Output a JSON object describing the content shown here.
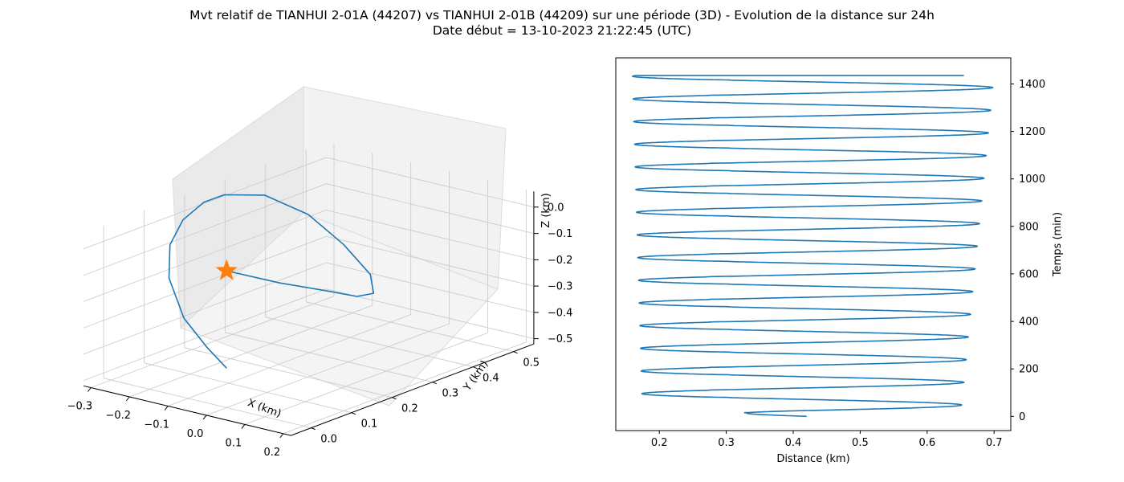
{
  "figure": {
    "title_line1": "Mvt relatif de TIANHUI 2-01A (44207) vs TIANHUI 2-01B (44209) sur une période (3D) - Evolution de la distance sur 24h",
    "title_line2": "Date début = 13-10-2023 21:22:45 (UTC)"
  },
  "colors": {
    "line": "#1f77b4",
    "marker": "#ff7f0e",
    "pane": "#f2f2f2",
    "grid": "#c8c8c8"
  },
  "chart_data": [
    {
      "type": "line3d",
      "xlabel": "X (km)",
      "ylabel": "Y (km)",
      "zlabel": "Z (km)",
      "xticks": [
        "−0.3",
        "−0.2",
        "−0.1",
        "0.0",
        "0.1",
        "0.2"
      ],
      "yticks": [
        "0.0",
        "0.1",
        "0.2",
        "0.3",
        "0.4",
        "0.5"
      ],
      "zticks": [
        "0.0",
        "−0.1",
        "−0.2",
        "−0.3",
        "−0.4",
        "−0.5"
      ],
      "xlim": [
        -0.32,
        0.22
      ],
      "ylim": [
        -0.05,
        0.55
      ],
      "zlim": [
        -0.52,
        0.06
      ],
      "grid": true,
      "marker": {
        "shape": "star",
        "x": 0.0,
        "y": 0.0,
        "z": 0.0
      },
      "series": [
        {
          "points": [
            [
              0.0,
              0.0,
              0.0
            ],
            [
              -0.02,
              0.15,
              -0.14
            ],
            [
              -0.03,
              0.28,
              -0.25
            ],
            [
              -0.04,
              0.36,
              -0.32
            ],
            [
              -0.06,
              0.42,
              -0.35
            ],
            [
              -0.1,
              0.45,
              -0.31
            ],
            [
              -0.17,
              0.45,
              -0.22
            ],
            [
              -0.23,
              0.42,
              -0.11
            ],
            [
              -0.27,
              0.35,
              -0.01
            ],
            [
              -0.28,
              0.26,
              0.04
            ],
            [
              -0.27,
              0.2,
              0.05
            ],
            [
              -0.24,
              0.12,
              0.04
            ],
            [
              -0.2,
              0.05,
              0.0
            ],
            [
              -0.15,
              0.0,
              -0.08
            ],
            [
              -0.09,
              -0.02,
              -0.2
            ],
            [
              -0.04,
              -0.01,
              -0.3
            ],
            [
              0.0,
              0.0,
              -0.37
            ]
          ]
        }
      ]
    },
    {
      "type": "line",
      "xlabel": "Distance (km)",
      "ylabel": "Temps (min)",
      "xlim": [
        0.135,
        0.725
      ],
      "ylim": [
        -60,
        1510
      ],
      "xticks": [
        0.2,
        0.3,
        0.4,
        0.5,
        0.6,
        0.7
      ],
      "yticks": [
        0,
        200,
        400,
        600,
        800,
        1000,
        1200,
        1400
      ],
      "yaxis_side": "right",
      "period_min": 95.5,
      "oscillation": [
        {
          "t": 0,
          "min": 0.175,
          "max": 0.65
        },
        {
          "t": 1436,
          "min": 0.16,
          "max": 0.7
        }
      ],
      "shoulder": {
        "x_range": [
          0.28,
          0.3
        ],
        "note": "small hook near 0.29 km on each half-cycle"
      },
      "start": {
        "t": 0,
        "distance": 0.42
      },
      "end": {
        "t": 1436,
        "distance": 0.655
      }
    }
  ]
}
